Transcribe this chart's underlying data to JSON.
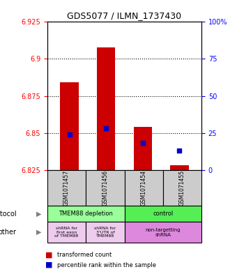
{
  "title": "GDS5077 / ILMN_1737430",
  "samples": [
    "GSM1071457",
    "GSM1071456",
    "GSM1071454",
    "GSM1071455"
  ],
  "bar_bottom": 6.825,
  "bar_tops": [
    6.884,
    6.908,
    6.854,
    6.828
  ],
  "percentile_values": [
    6.849,
    6.853,
    6.843,
    6.838
  ],
  "ylim": [
    6.825,
    6.925
  ],
  "yticks": [
    6.825,
    6.85,
    6.875,
    6.9,
    6.925
  ],
  "ytick_labels": [
    "6.825",
    "6.85",
    "6.875",
    "6.9",
    "6.925"
  ],
  "right_ytick_labels": [
    "0",
    "25",
    "50",
    "75",
    "100%"
  ],
  "right_ytick_values": [
    6.825,
    6.85,
    6.875,
    6.9,
    6.925
  ],
  "bar_color": "#cc0000",
  "percentile_color": "#0000cc",
  "bar_width": 0.5,
  "protocol_labels": [
    "TMEM88 depletion",
    "control"
  ],
  "protocol_color_left": "#99ff99",
  "protocol_color_right": "#55ee55",
  "other_labels": [
    "shRNA for\nfirst exon\nof TMEM88",
    "shRNA for\n3'UTR of\nTMEM88",
    "non-targetting\nshRNA"
  ],
  "other_color_left1": "#eeccee",
  "other_color_left2": "#eeccee",
  "other_color_right": "#dd88dd",
  "legend_red": "transformed count",
  "legend_blue": "percentile rank within the sample",
  "protocol_arrow_label": "protocol",
  "other_arrow_label": "other"
}
